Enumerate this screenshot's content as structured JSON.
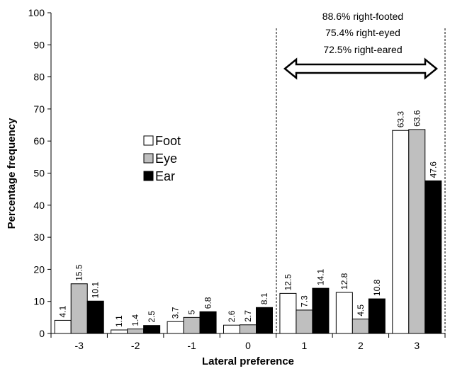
{
  "chart_data": {
    "type": "bar",
    "title": "",
    "xlabel": "Lateral preference",
    "ylabel": "Percentage frequency",
    "categories": [
      "-3",
      "-2",
      "-1",
      "0",
      "1",
      "2",
      "3"
    ],
    "ylim": [
      0,
      100
    ],
    "yticks": [
      0,
      10,
      20,
      30,
      40,
      50,
      60,
      70,
      80,
      90,
      100
    ],
    "grid": false,
    "legend_position": "center-left",
    "series": [
      {
        "name": "Foot",
        "color": "#ffffff",
        "values": [
          4.1,
          1.1,
          3.7,
          2.6,
          12.5,
          12.8,
          63.3
        ]
      },
      {
        "name": "Eye",
        "color": "#bfbfbf",
        "values": [
          15.5,
          1.4,
          5,
          2.7,
          7.3,
          4.5,
          63.6
        ]
      },
      {
        "name": "Ear",
        "color": "#000000",
        "values": [
          10.1,
          2.5,
          6.8,
          8.1,
          14.1,
          10.8,
          47.6
        ]
      }
    ],
    "annotations": [
      "88.6% right-footed",
      "75.4% right-eyed",
      "72.5% right-eared"
    ]
  }
}
